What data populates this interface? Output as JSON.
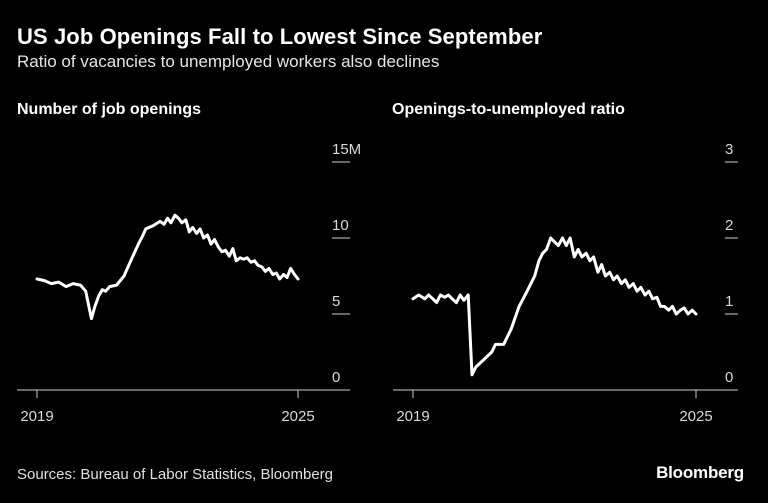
{
  "title": "US Job Openings Fall to Lowest Since September",
  "subtitle": "Ratio of vacancies to unemployed workers also declines",
  "source": "Sources: Bureau of Labor Statistics, Bloomberg",
  "brand": "Bloomberg",
  "colors": {
    "background": "#000000",
    "line": "#ffffff",
    "text": "#ffffff"
  },
  "chart_data": [
    {
      "type": "line",
      "title": "Number of job openings",
      "y_ticks": [
        "15M",
        "10",
        "5",
        "0"
      ],
      "y_tick_values": [
        15,
        10,
        5,
        0
      ],
      "ylim": [
        0,
        15
      ],
      "x_ticks": [
        "2019",
        "2025"
      ],
      "xlim": [
        2019.0,
        2025.0
      ],
      "grid": false,
      "series": [
        {
          "x": [
            2019.0,
            2019.17,
            2019.33,
            2019.5,
            2019.67,
            2019.83,
            2020.0,
            2020.12,
            2020.25,
            2020.33,
            2020.42,
            2020.5,
            2020.58,
            2020.67,
            2020.83,
            2021.0,
            2021.17,
            2021.33,
            2021.42,
            2021.5,
            2021.67,
            2021.83,
            2021.92,
            2022.0,
            2022.08,
            2022.17,
            2022.25,
            2022.33,
            2022.42,
            2022.5,
            2022.58,
            2022.67,
            2022.75,
            2022.83,
            2022.92,
            2023.0,
            2023.08,
            2023.17,
            2023.25,
            2023.33,
            2023.42,
            2023.5,
            2023.58,
            2023.67,
            2023.75,
            2023.83,
            2023.92,
            2024.0,
            2024.08,
            2024.17,
            2024.25,
            2024.33,
            2024.42,
            2024.5,
            2024.58,
            2024.67,
            2024.75,
            2024.83,
            2024.92,
            2025.0
          ],
          "values": [
            7.3,
            7.2,
            7.0,
            7.1,
            6.8,
            7.0,
            6.9,
            6.5,
            4.7,
            5.5,
            6.2,
            6.6,
            6.5,
            6.8,
            6.9,
            7.5,
            8.6,
            9.6,
            10.1,
            10.6,
            10.8,
            11.1,
            10.9,
            11.3,
            11.0,
            11.5,
            11.3,
            11.0,
            11.2,
            10.4,
            10.7,
            10.3,
            10.6,
            10.0,
            10.2,
            9.6,
            9.9,
            9.4,
            9.1,
            9.2,
            8.8,
            9.3,
            8.5,
            8.7,
            8.6,
            8.7,
            8.4,
            8.5,
            8.2,
            8.1,
            7.8,
            8.0,
            7.6,
            7.7,
            7.3,
            7.6,
            7.4,
            8.0,
            7.6,
            7.3
          ]
        }
      ]
    },
    {
      "type": "line",
      "title": "Openings-to-unemployed ratio",
      "y_ticks": [
        "3",
        "2",
        "1",
        "0"
      ],
      "y_tick_values": [
        3,
        2,
        1,
        0
      ],
      "ylim": [
        0,
        3
      ],
      "x_ticks": [
        "2019",
        "2025"
      ],
      "xlim": [
        2019.0,
        2025.0
      ],
      "grid": false,
      "series": [
        {
          "x": [
            2019.0,
            2019.12,
            2019.25,
            2019.33,
            2019.42,
            2019.5,
            2019.58,
            2019.67,
            2019.75,
            2019.83,
            2019.92,
            2020.0,
            2020.08,
            2020.17,
            2020.25,
            2020.33,
            2020.5,
            2020.67,
            2020.75,
            2020.92,
            2021.08,
            2021.25,
            2021.42,
            2021.5,
            2021.58,
            2021.67,
            2021.75,
            2021.83,
            2021.92,
            2022.0,
            2022.08,
            2022.17,
            2022.25,
            2022.33,
            2022.42,
            2022.5,
            2022.58,
            2022.67,
            2022.75,
            2022.83,
            2022.92,
            2023.0,
            2023.08,
            2023.17,
            2023.25,
            2023.33,
            2023.42,
            2023.5,
            2023.58,
            2023.67,
            2023.75,
            2023.83,
            2023.92,
            2024.0,
            2024.08,
            2024.17,
            2024.25,
            2024.33,
            2024.42,
            2024.5,
            2024.58,
            2024.67,
            2024.75,
            2024.83,
            2024.92,
            2025.0
          ],
          "values": [
            1.2,
            1.25,
            1.2,
            1.25,
            1.2,
            1.15,
            1.25,
            1.22,
            1.25,
            1.2,
            1.15,
            1.25,
            1.18,
            1.25,
            0.2,
            0.3,
            0.4,
            0.5,
            0.6,
            0.6,
            0.8,
            1.1,
            1.3,
            1.4,
            1.5,
            1.7,
            1.8,
            1.85,
            2.0,
            1.95,
            1.9,
            2.0,
            1.9,
            2.0,
            1.75,
            1.85,
            1.75,
            1.8,
            1.7,
            1.75,
            1.55,
            1.65,
            1.5,
            1.55,
            1.45,
            1.5,
            1.4,
            1.45,
            1.35,
            1.4,
            1.3,
            1.35,
            1.25,
            1.3,
            1.2,
            1.22,
            1.1,
            1.1,
            1.05,
            1.1,
            1.0,
            1.05,
            1.08,
            1.0,
            1.05,
            1.0
          ]
        }
      ]
    }
  ]
}
